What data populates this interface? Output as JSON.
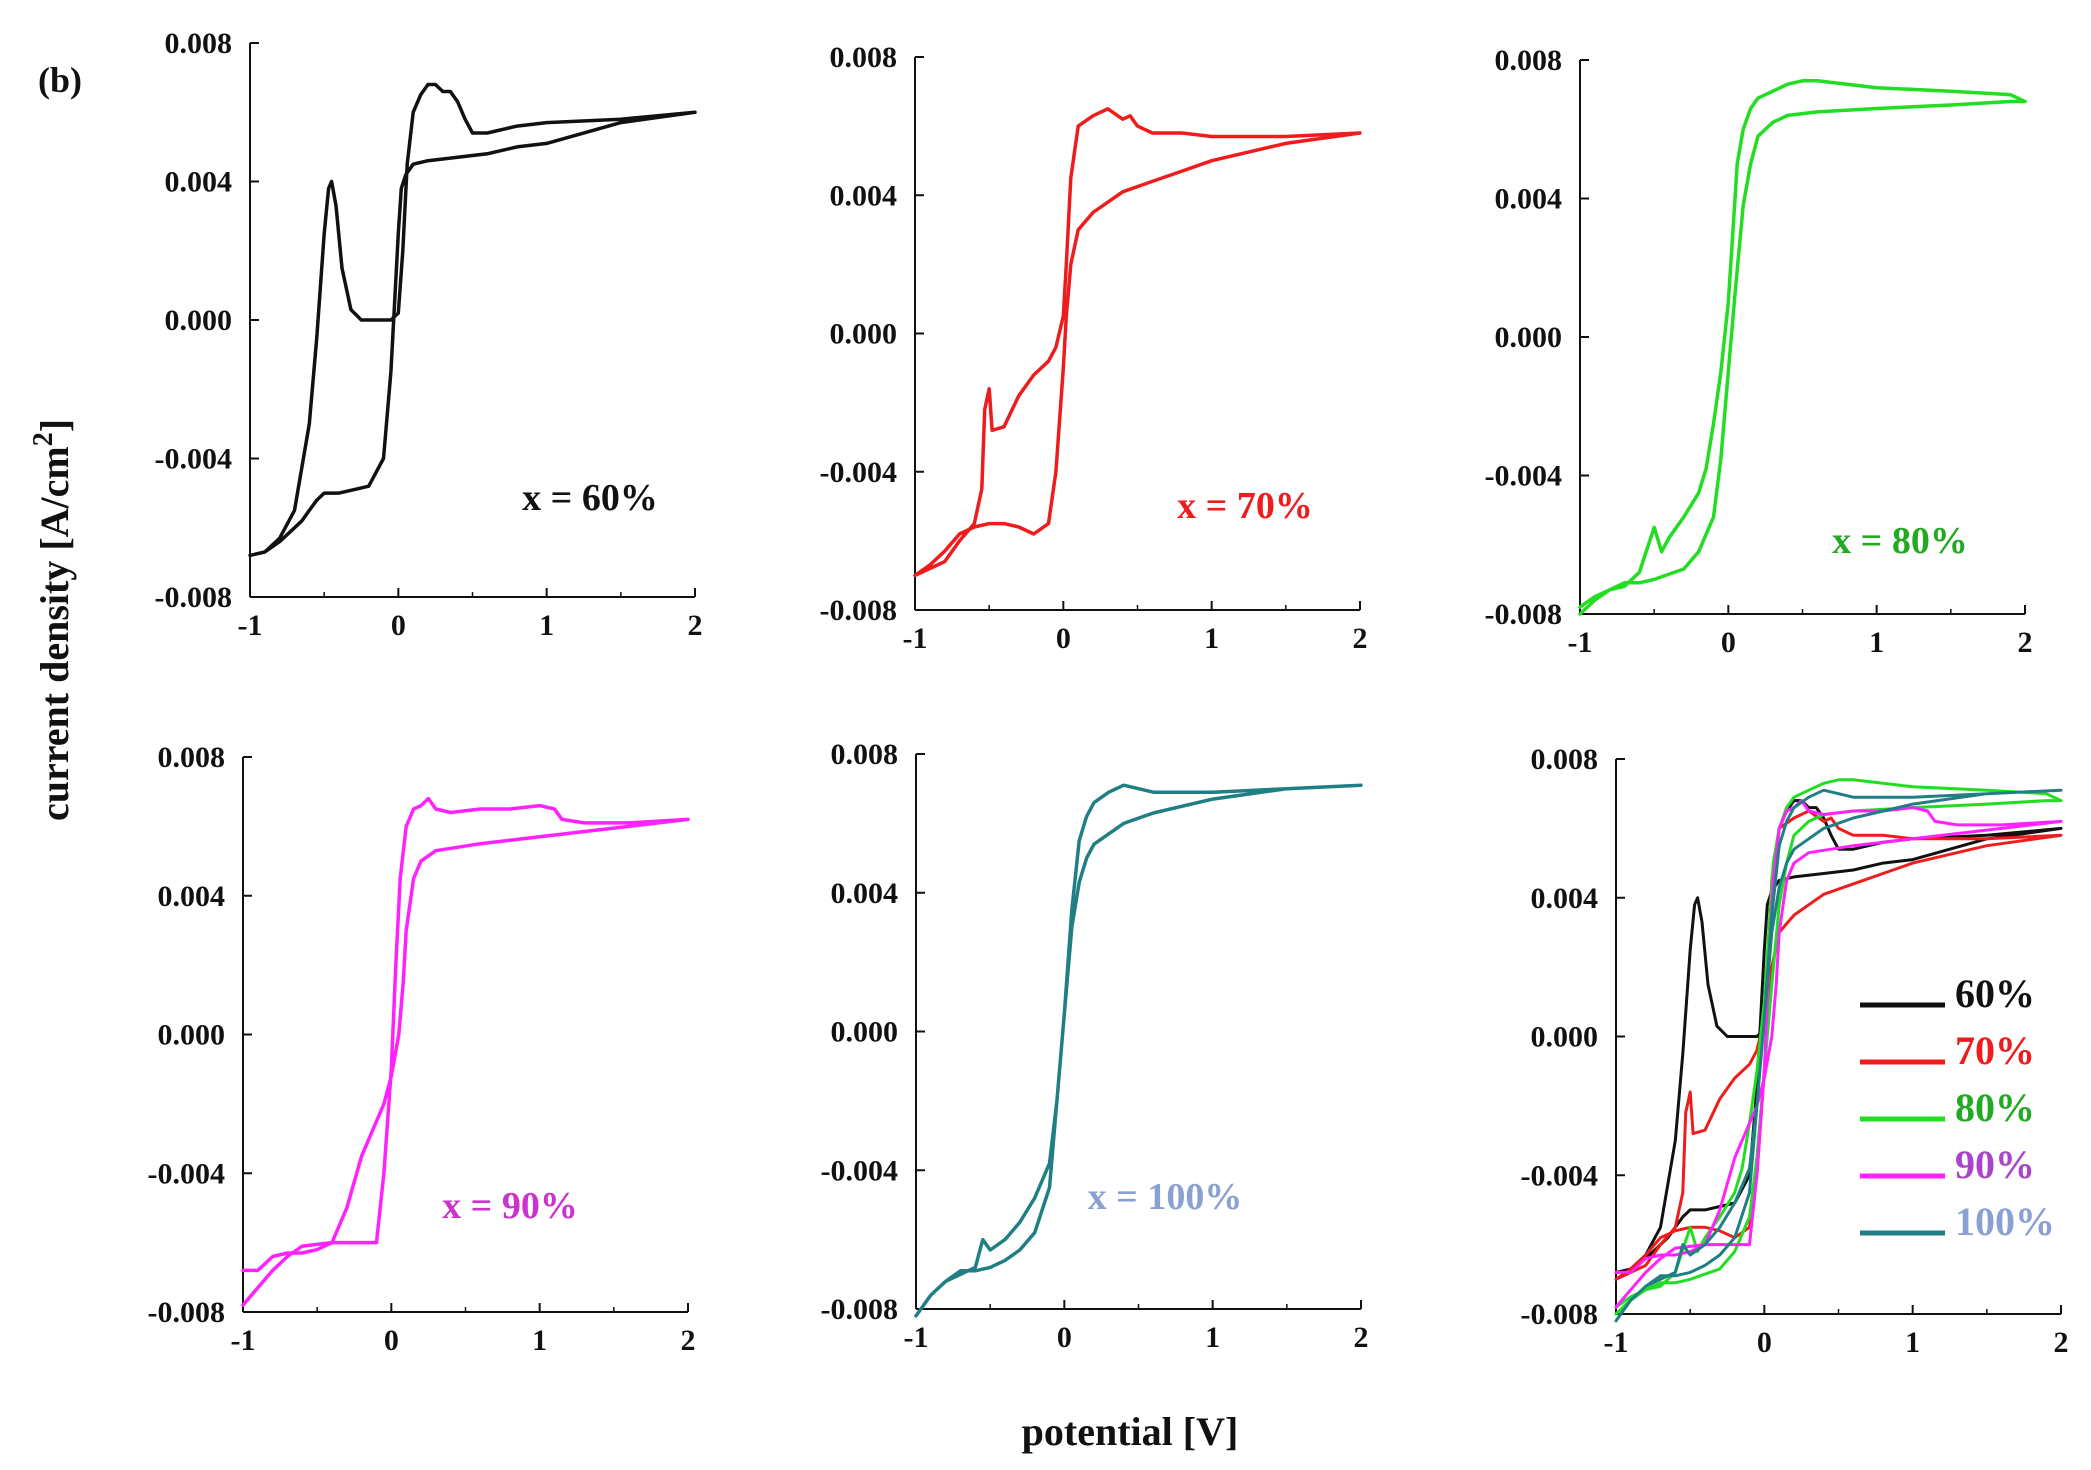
{
  "figure_label": "(b)",
  "ylabel_main": "current density [A/cm",
  "ylabel_sup": "2",
  "ylabel_close": "]",
  "xlabel": "potential [V]",
  "chart_data": [
    {
      "type": "line",
      "panel": "x = 60%",
      "color": "#111111",
      "xlim": [
        -1,
        2
      ],
      "ylim": [
        -0.008,
        0.008
      ],
      "xticks": [
        "-1",
        "0",
        "1",
        "2"
      ],
      "yticks": [
        "0.008",
        "0.004",
        "0.000",
        "-0.004",
        "-0.008"
      ],
      "xlabel": "potential [V]",
      "ylabel": "current density [A/cm2]",
      "series": [
        {
          "name": "60%",
          "x": [
            -1.0,
            -0.9,
            -0.8,
            -0.7,
            -0.6,
            -0.55,
            -0.5,
            -0.47,
            -0.45,
            -0.42,
            -0.38,
            -0.32,
            -0.25,
            -0.15,
            -0.05,
            0.0,
            0.03,
            0.06,
            0.1,
            0.15,
            0.2,
            0.25,
            0.3,
            0.35,
            0.4,
            0.45,
            0.5,
            0.6,
            0.8,
            1.0,
            1.5,
            2.0,
            1.5,
            1.0,
            0.8,
            0.6,
            0.4,
            0.2,
            0.1,
            0.05,
            0.02,
            0.0,
            -0.05,
            -0.1,
            -0.2,
            -0.3,
            -0.4,
            -0.5,
            -0.55,
            -0.6,
            -0.65,
            -0.7,
            -0.8,
            -0.9,
            -1.0
          ],
          "y": [
            -0.0068,
            -0.0067,
            -0.0063,
            -0.0055,
            -0.003,
            -0.0005,
            0.0025,
            0.0038,
            0.004,
            0.0033,
            0.0015,
            0.0003,
            0.0,
            0.0,
            0.0,
            0.0002,
            0.002,
            0.0045,
            0.006,
            0.0065,
            0.0068,
            0.0068,
            0.0066,
            0.0066,
            0.0063,
            0.0058,
            0.0054,
            0.0054,
            0.0056,
            0.0057,
            0.0058,
            0.006,
            0.0057,
            0.0051,
            0.005,
            0.0048,
            0.0047,
            0.0046,
            0.0045,
            0.0042,
            0.0038,
            0.0025,
            -0.0015,
            -0.004,
            -0.0048,
            -0.0049,
            -0.005,
            -0.005,
            -0.0052,
            -0.0055,
            -0.0058,
            -0.006,
            -0.0064,
            -0.0067,
            -0.0068
          ]
        }
      ]
    },
    {
      "type": "line",
      "panel": "x = 70%",
      "color": "#ee1c1c",
      "xlim": [
        -1,
        2
      ],
      "ylim": [
        -0.008,
        0.008
      ],
      "xticks": [
        "-1",
        "0",
        "1",
        "2"
      ],
      "yticks": [
        "0.008",
        "0.004",
        "0.000",
        "-0.004",
        "-0.008"
      ],
      "xlabel": "potential [V]",
      "ylabel": "current density [A/cm2]",
      "series": [
        {
          "name": "70%",
          "x": [
            -1.0,
            -0.9,
            -0.8,
            -0.7,
            -0.6,
            -0.55,
            -0.53,
            -0.5,
            -0.48,
            -0.4,
            -0.3,
            -0.2,
            -0.1,
            -0.05,
            0.0,
            0.02,
            0.05,
            0.1,
            0.2,
            0.3,
            0.4,
            0.45,
            0.5,
            0.6,
            0.8,
            1.0,
            1.5,
            2.0,
            1.5,
            1.0,
            0.8,
            0.6,
            0.4,
            0.2,
            0.1,
            0.05,
            0.02,
            0.0,
            -0.05,
            -0.1,
            -0.2,
            -0.3,
            -0.4,
            -0.5,
            -0.6,
            -0.7,
            -0.8,
            -0.9,
            -1.0
          ],
          "y": [
            -0.007,
            -0.0068,
            -0.0066,
            -0.006,
            -0.0055,
            -0.0045,
            -0.0022,
            -0.0016,
            -0.0028,
            -0.0027,
            -0.0018,
            -0.0012,
            -0.0008,
            -0.0004,
            0.0005,
            0.002,
            0.0045,
            0.006,
            0.0063,
            0.0065,
            0.0062,
            0.0063,
            0.006,
            0.0058,
            0.0058,
            0.0057,
            0.0057,
            0.0058,
            0.0055,
            0.005,
            0.0047,
            0.0044,
            0.0041,
            0.0035,
            0.003,
            0.002,
            0.0005,
            -0.001,
            -0.004,
            -0.0055,
            -0.0058,
            -0.0056,
            -0.0055,
            -0.0055,
            -0.0056,
            -0.0058,
            -0.0063,
            -0.0067,
            -0.007
          ]
        }
      ]
    },
    {
      "type": "line",
      "panel": "x = 80%",
      "color": "#22dd22",
      "xlim": [
        -1,
        2
      ],
      "ylim": [
        -0.008,
        0.008
      ],
      "xticks": [
        "-1",
        "0",
        "1",
        "2"
      ],
      "yticks": [
        "0.008",
        "0.004",
        "0.000",
        "-0.004",
        "-0.008"
      ],
      "xlabel": "potential [V]",
      "ylabel": "current density [A/cm2]",
      "series": [
        {
          "name": "80%",
          "x": [
            -1.0,
            -0.9,
            -0.8,
            -0.7,
            -0.6,
            -0.5,
            -0.45,
            -0.4,
            -0.3,
            -0.2,
            -0.15,
            -0.1,
            -0.05,
            0.0,
            0.03,
            0.06,
            0.1,
            0.15,
            0.2,
            0.3,
            0.4,
            0.5,
            0.6,
            0.8,
            1.0,
            1.5,
            1.9,
            2.0,
            1.9,
            1.5,
            1.0,
            0.6,
            0.4,
            0.3,
            0.2,
            0.15,
            0.1,
            0.05,
            0.0,
            -0.05,
            -0.1,
            -0.2,
            -0.3,
            -0.5,
            -0.6,
            -0.7,
            -0.8,
            -0.9,
            -1.0
          ],
          "y": [
            -0.0078,
            -0.0075,
            -0.0073,
            -0.0072,
            -0.0068,
            -0.0055,
            -0.0062,
            -0.0058,
            -0.0052,
            -0.0045,
            -0.0038,
            -0.0025,
            -0.001,
            0.001,
            0.003,
            0.005,
            0.006,
            0.0066,
            0.0069,
            0.0071,
            0.0073,
            0.0074,
            0.0074,
            0.0073,
            0.0072,
            0.0071,
            0.007,
            0.0068,
            0.0068,
            0.0067,
            0.0066,
            0.0065,
            0.0064,
            0.0062,
            0.0058,
            0.005,
            0.0038,
            0.0015,
            -0.001,
            -0.0035,
            -0.0052,
            -0.0062,
            -0.0067,
            -0.007,
            -0.0071,
            -0.0071,
            -0.0073,
            -0.0076,
            -0.008
          ]
        }
      ]
    },
    {
      "type": "line",
      "panel": "x = 90%",
      "color": "#ff22ff",
      "xlim": [
        -1,
        2
      ],
      "ylim": [
        -0.008,
        0.008
      ],
      "xticks": [
        "-1",
        "0",
        "1",
        "2"
      ],
      "yticks": [
        "0.008",
        "0.004",
        "0.000",
        "-0.004",
        "-0.008"
      ],
      "xlabel": "potential [V]",
      "ylabel": "current density [A/cm2]",
      "series": [
        {
          "name": "90%",
          "x": [
            -1.0,
            -0.9,
            -0.8,
            -0.7,
            -0.6,
            -0.4,
            -0.2,
            -0.1,
            -0.05,
            0.0,
            0.03,
            0.06,
            0.1,
            0.15,
            0.2,
            0.25,
            0.3,
            0.4,
            0.6,
            0.8,
            1.0,
            1.1,
            1.15,
            1.3,
            1.6,
            2.0,
            1.6,
            1.0,
            0.6,
            0.3,
            0.2,
            0.15,
            0.1,
            0.08,
            0.05,
            0.0,
            -0.05,
            -0.1,
            -0.2,
            -0.3,
            -0.4,
            -0.5,
            -0.6,
            -0.7,
            -0.8,
            -0.9,
            -1.0
          ],
          "y": [
            -0.0078,
            -0.0073,
            -0.0068,
            -0.0064,
            -0.0061,
            -0.006,
            -0.006,
            -0.006,
            -0.004,
            -0.001,
            0.002,
            0.0045,
            0.006,
            0.0065,
            0.0066,
            0.0068,
            0.0065,
            0.0064,
            0.0065,
            0.0065,
            0.0066,
            0.0065,
            0.0062,
            0.0061,
            0.0061,
            0.0062,
            0.006,
            0.0057,
            0.0055,
            0.0053,
            0.005,
            0.0045,
            0.003,
            0.0015,
            0.0,
            -0.0012,
            -0.002,
            -0.0025,
            -0.0035,
            -0.005,
            -0.006,
            -0.0062,
            -0.0063,
            -0.0063,
            -0.0064,
            -0.0068,
            -0.0068
          ]
        }
      ]
    },
    {
      "type": "line",
      "panel": "x = 100%",
      "color": "#1f7f84",
      "xlim": [
        -1,
        2
      ],
      "ylim": [
        -0.008,
        0.008
      ],
      "xticks": [
        "-1",
        "0",
        "1",
        "2"
      ],
      "yticks": [
        "0.008",
        "0.004",
        "0.000",
        "-0.004",
        "-0.008"
      ],
      "xlabel": "potential [V]",
      "ylabel": "current density [A/cm2]",
      "series": [
        {
          "name": "100%",
          "x": [
            -1.0,
            -0.9,
            -0.8,
            -0.7,
            -0.6,
            -0.55,
            -0.5,
            -0.4,
            -0.3,
            -0.2,
            -0.1,
            -0.05,
            0.0,
            0.05,
            0.1,
            0.15,
            0.2,
            0.3,
            0.4,
            0.5,
            0.6,
            0.8,
            1.0,
            1.5,
            2.0,
            1.5,
            1.0,
            0.6,
            0.4,
            0.3,
            0.2,
            0.15,
            0.1,
            0.05,
            0.0,
            -0.05,
            -0.1,
            -0.2,
            -0.3,
            -0.4,
            -0.5,
            -0.6,
            -0.7,
            -0.8,
            -0.9,
            -1.0
          ],
          "y": [
            -0.0082,
            -0.0076,
            -0.0072,
            -0.007,
            -0.0068,
            -0.006,
            -0.0063,
            -0.006,
            -0.0055,
            -0.0048,
            -0.0038,
            -0.002,
            0.0005,
            0.0035,
            0.0055,
            0.0062,
            0.0066,
            0.0069,
            0.0071,
            0.007,
            0.0069,
            0.0069,
            0.0069,
            0.007,
            0.0071,
            0.007,
            0.0067,
            0.0063,
            0.006,
            0.0057,
            0.0054,
            0.005,
            0.0043,
            0.003,
            0.0005,
            -0.002,
            -0.0045,
            -0.0058,
            -0.0063,
            -0.0066,
            -0.0068,
            -0.0069,
            -0.0069,
            -0.0072,
            -0.0076,
            -0.0082
          ]
        }
      ]
    },
    {
      "type": "line",
      "panel": "combined",
      "xlim": [
        -1,
        2
      ],
      "ylim": [
        -0.008,
        0.008
      ],
      "xticks": [
        "-1",
        "0",
        "1",
        "2"
      ],
      "yticks": [
        "0.008",
        "0.004",
        "0.000",
        "-0.004",
        "-0.008"
      ],
      "xlabel": "potential [V]",
      "ylabel": "current density [A/cm2]",
      "legend": [
        {
          "label": "60%",
          "line_color": "#111111",
          "text_color": "#111111"
        },
        {
          "label": "70%",
          "line_color": "#ee1c1c",
          "text_color": "#ee1c1c"
        },
        {
          "label": "80%",
          "line_color": "#22dd22",
          "text_color": "#22aa22"
        },
        {
          "label": "90%",
          "line_color": "#ff22ff",
          "text_color": "#aa44cc"
        },
        {
          "label": "100%",
          "line_color": "#1f7f84",
          "text_color": "#8aa0d0"
        }
      ],
      "series_refs": [
        0,
        1,
        2,
        3,
        4
      ]
    }
  ],
  "panel_label_colors": [
    "#111111",
    "#ee1c1c",
    "#22aa22",
    "#cc33cc",
    "#8aa0d0"
  ]
}
